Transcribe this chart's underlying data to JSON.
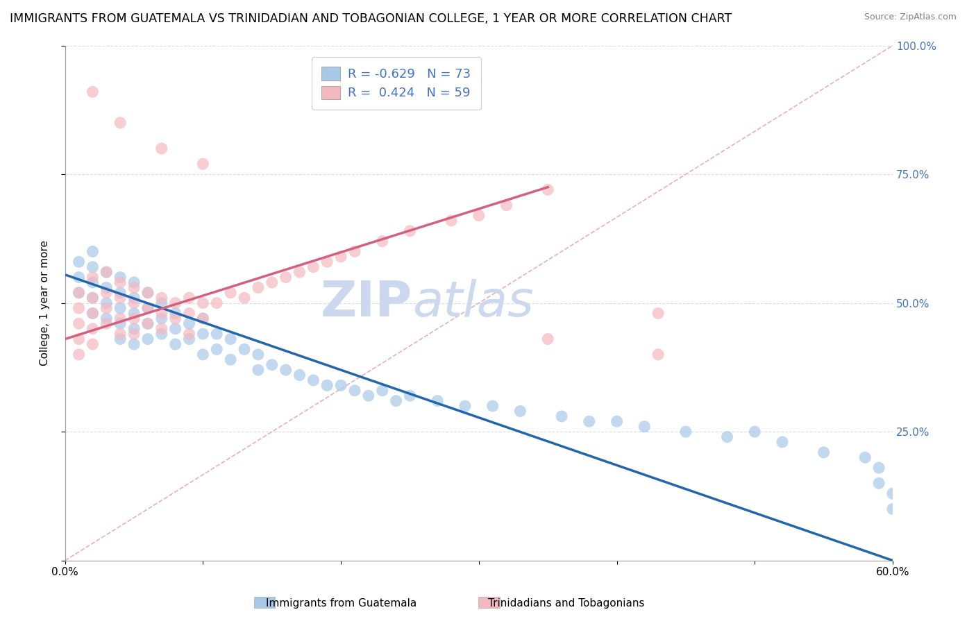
{
  "title": "IMMIGRANTS FROM GUATEMALA VS TRINIDADIAN AND TOBAGONIAN COLLEGE, 1 YEAR OR MORE CORRELATION CHART",
  "source": "Source: ZipAtlas.com",
  "ylabel": "College, 1 year or more",
  "xlabel": "",
  "xlim": [
    0.0,
    0.6
  ],
  "ylim": [
    0.0,
    1.0
  ],
  "blue_R": -0.629,
  "blue_N": 73,
  "pink_R": 0.424,
  "pink_N": 59,
  "blue_color": "#a8c8e8",
  "pink_color": "#f4b8c0",
  "blue_line_color": "#2166ac",
  "pink_line_color": "#d46080",
  "ref_line_color": "#e8b0b0",
  "grid_color": "#cccccc",
  "watermark_zip": "ZIP",
  "watermark_atlas": "atlas",
  "legend_label_blue": "Immigrants from Guatemala",
  "legend_label_pink": "Trinidadians and Tobagonians",
  "blue_scatter_x": [
    0.01,
    0.01,
    0.01,
    0.02,
    0.02,
    0.02,
    0.02,
    0.02,
    0.03,
    0.03,
    0.03,
    0.03,
    0.04,
    0.04,
    0.04,
    0.04,
    0.04,
    0.05,
    0.05,
    0.05,
    0.05,
    0.05,
    0.06,
    0.06,
    0.06,
    0.06,
    0.07,
    0.07,
    0.07,
    0.08,
    0.08,
    0.08,
    0.09,
    0.09,
    0.1,
    0.1,
    0.1,
    0.11,
    0.11,
    0.12,
    0.12,
    0.13,
    0.14,
    0.14,
    0.15,
    0.16,
    0.17,
    0.18,
    0.19,
    0.2,
    0.21,
    0.22,
    0.23,
    0.24,
    0.25,
    0.27,
    0.29,
    0.31,
    0.33,
    0.36,
    0.38,
    0.4,
    0.42,
    0.45,
    0.48,
    0.5,
    0.52,
    0.55,
    0.58,
    0.59,
    0.59,
    0.6,
    0.6
  ],
  "blue_scatter_y": [
    0.58,
    0.55,
    0.52,
    0.57,
    0.54,
    0.51,
    0.48,
    0.6,
    0.56,
    0.53,
    0.5,
    0.47,
    0.55,
    0.52,
    0.49,
    0.46,
    0.43,
    0.54,
    0.51,
    0.48,
    0.45,
    0.42,
    0.52,
    0.49,
    0.46,
    0.43,
    0.5,
    0.47,
    0.44,
    0.48,
    0.45,
    0.42,
    0.46,
    0.43,
    0.47,
    0.44,
    0.4,
    0.44,
    0.41,
    0.43,
    0.39,
    0.41,
    0.4,
    0.37,
    0.38,
    0.37,
    0.36,
    0.35,
    0.34,
    0.34,
    0.33,
    0.32,
    0.33,
    0.31,
    0.32,
    0.31,
    0.3,
    0.3,
    0.29,
    0.28,
    0.27,
    0.27,
    0.26,
    0.25,
    0.24,
    0.25,
    0.23,
    0.21,
    0.2,
    0.18,
    0.15,
    0.13,
    0.1
  ],
  "pink_scatter_x": [
    0.01,
    0.01,
    0.01,
    0.01,
    0.01,
    0.02,
    0.02,
    0.02,
    0.02,
    0.02,
    0.03,
    0.03,
    0.03,
    0.03,
    0.04,
    0.04,
    0.04,
    0.04,
    0.05,
    0.05,
    0.05,
    0.05,
    0.06,
    0.06,
    0.06,
    0.07,
    0.07,
    0.07,
    0.08,
    0.08,
    0.09,
    0.09,
    0.09,
    0.1,
    0.1,
    0.11,
    0.12,
    0.13,
    0.14,
    0.15,
    0.16,
    0.17,
    0.18,
    0.19,
    0.2,
    0.21,
    0.23,
    0.25,
    0.28,
    0.3,
    0.32,
    0.35,
    0.02,
    0.04,
    0.07,
    0.1,
    0.43,
    0.43,
    0.35
  ],
  "pink_scatter_y": [
    0.52,
    0.49,
    0.46,
    0.43,
    0.4,
    0.55,
    0.51,
    0.48,
    0.45,
    0.42,
    0.56,
    0.52,
    0.49,
    0.46,
    0.54,
    0.51,
    0.47,
    0.44,
    0.53,
    0.5,
    0.47,
    0.44,
    0.52,
    0.49,
    0.46,
    0.51,
    0.48,
    0.45,
    0.5,
    0.47,
    0.51,
    0.48,
    0.44,
    0.5,
    0.47,
    0.5,
    0.52,
    0.51,
    0.53,
    0.54,
    0.55,
    0.56,
    0.57,
    0.58,
    0.59,
    0.6,
    0.62,
    0.64,
    0.66,
    0.67,
    0.69,
    0.72,
    0.91,
    0.85,
    0.8,
    0.77,
    0.48,
    0.4,
    0.43
  ],
  "background_color": "#ffffff",
  "title_fontsize": 12.5,
  "axis_label_fontsize": 11,
  "tick_fontsize": 11,
  "right_tick_color": "#4472c4",
  "watermark_color": "#ccd8ee",
  "watermark_fontsize_zip": 52,
  "watermark_fontsize_atlas": 52
}
